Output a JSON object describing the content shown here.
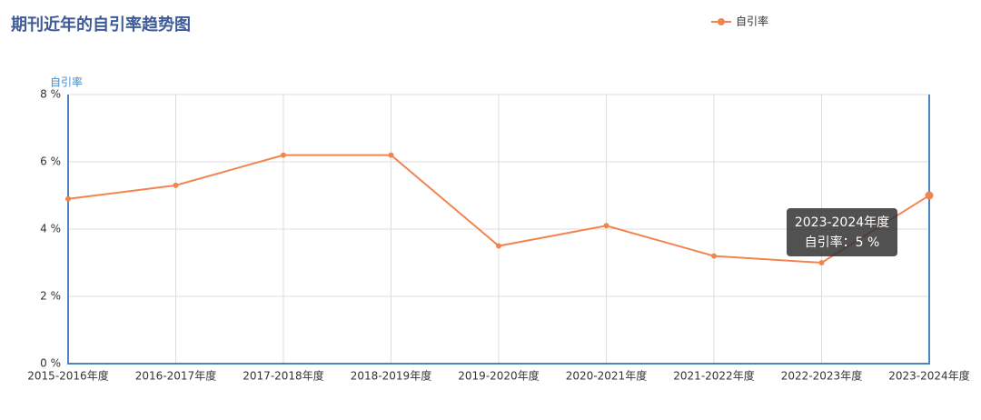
{
  "chart_data": {
    "type": "line",
    "title": "期刊近年的自引率趋势图",
    "y_label": "自引率",
    "categories": [
      "2015-2016年度",
      "2016-2017年度",
      "2017-2018年度",
      "2018-2019年度",
      "2019-2020年度",
      "2020-2021年度",
      "2021-2022年度",
      "2022-2023年度",
      "2023-2024年度"
    ],
    "series": [
      {
        "name": "自引率",
        "color": "#f2854f",
        "values": [
          4.9,
          5.3,
          6.2,
          6.2,
          3.5,
          4.1,
          3.2,
          3.0,
          5.0
        ]
      }
    ],
    "ylim": [
      0,
      8
    ],
    "yticks": [
      {
        "value": 0,
        "label": "0 %"
      },
      {
        "value": 2,
        "label": "2 %"
      },
      {
        "value": 4,
        "label": "4 %"
      },
      {
        "value": 6,
        "label": "6 %"
      },
      {
        "value": 8,
        "label": "8 %"
      }
    ],
    "grid": true,
    "tooltip": {
      "text": "自引率：5 %"
    }
  }
}
